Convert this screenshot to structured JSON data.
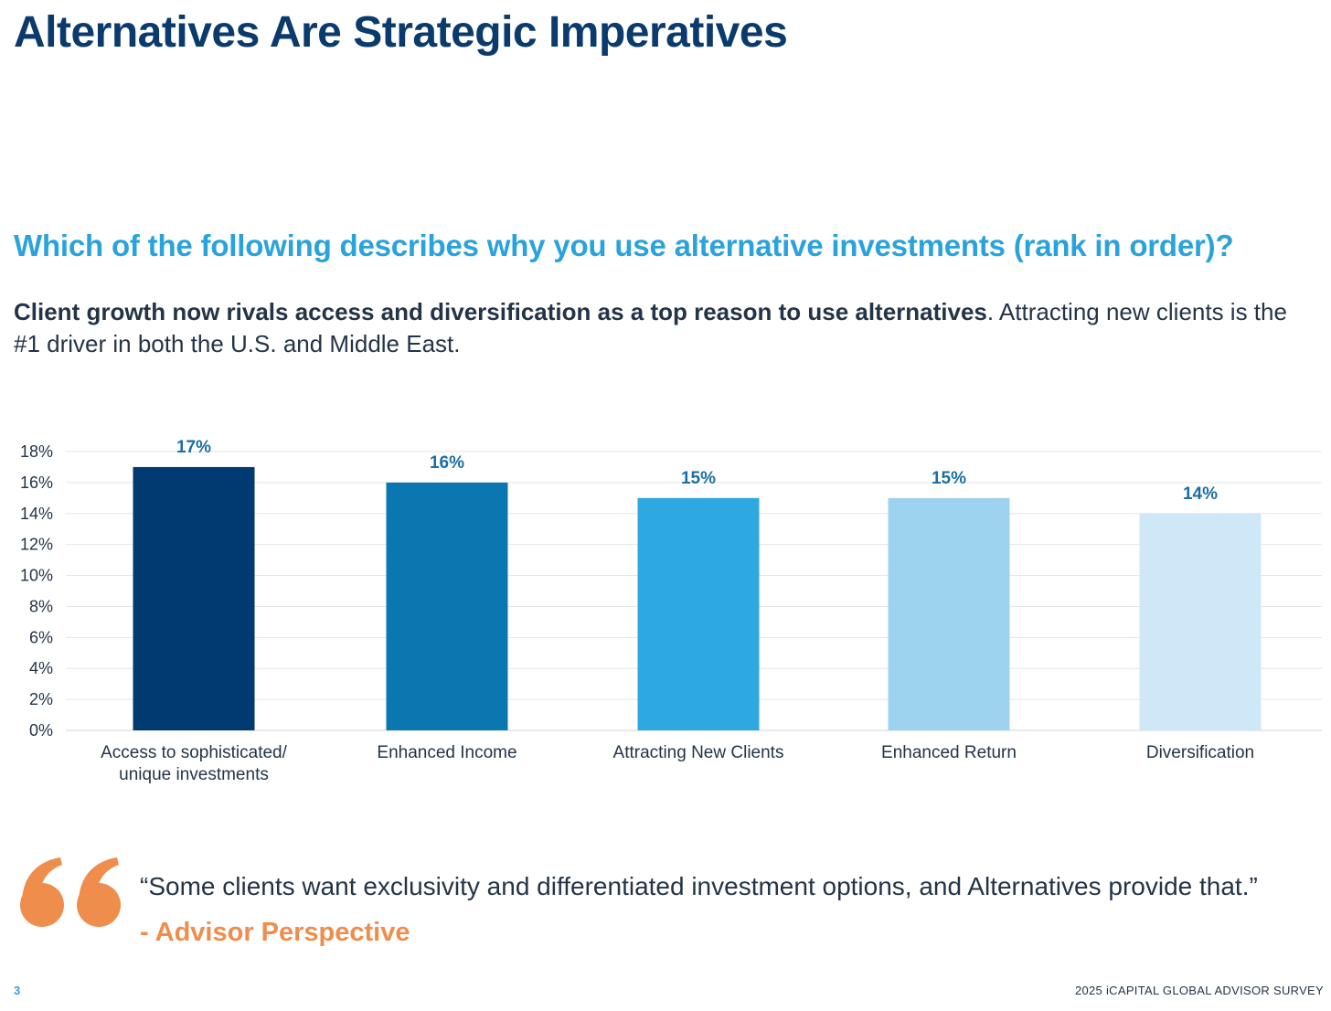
{
  "header": {
    "title": "Alternatives Are Strategic Imperatives"
  },
  "question": "Which of the following describes why you use alternative investments (rank in order)?",
  "summary": {
    "bold": "Client growth now rivals access and diversification as a top reason to use alternatives",
    "rest": ". Attracting new clients is the #1 driver in both the U.S. and Middle East."
  },
  "chart_data": {
    "type": "bar",
    "title": "",
    "xlabel": "",
    "ylabel": "",
    "ylim": [
      0,
      18
    ],
    "yticks": [
      0,
      2,
      4,
      6,
      8,
      10,
      12,
      14,
      16,
      18
    ],
    "ytick_labels": [
      "0%",
      "2%",
      "4%",
      "6%",
      "8%",
      "10%",
      "12%",
      "14%",
      "16%",
      "18%"
    ],
    "grid": true,
    "categories": [
      [
        "Access to sophisticated/",
        "unique investments"
      ],
      [
        "Enhanced Income"
      ],
      [
        "Attracting New Clients"
      ],
      [
        "Enhanced Return"
      ],
      [
        "Diversification"
      ]
    ],
    "values": [
      17,
      16,
      15,
      15,
      14
    ],
    "data_labels": [
      "17%",
      "16%",
      "15%",
      "15%",
      "14%"
    ],
    "colors": [
      "#003a70",
      "#0a77b0",
      "#2ea8e1",
      "#9dd3ef",
      "#cfe8f7"
    ]
  },
  "quote": {
    "text": "“Some clients want exclusivity and differentiated investment options, and Alternatives provide that.”",
    "attribution": "- Advisor Perspective"
  },
  "footer": {
    "page_number": "3",
    "survey_name": "2025 iCAPITAL GLOBAL ADVISOR SURVEY"
  },
  "colors": {
    "title": "#0b3a6d",
    "question": "#2aa3dc",
    "accent_orange": "#ef8d4d",
    "data_label": "#1b6ea5"
  }
}
